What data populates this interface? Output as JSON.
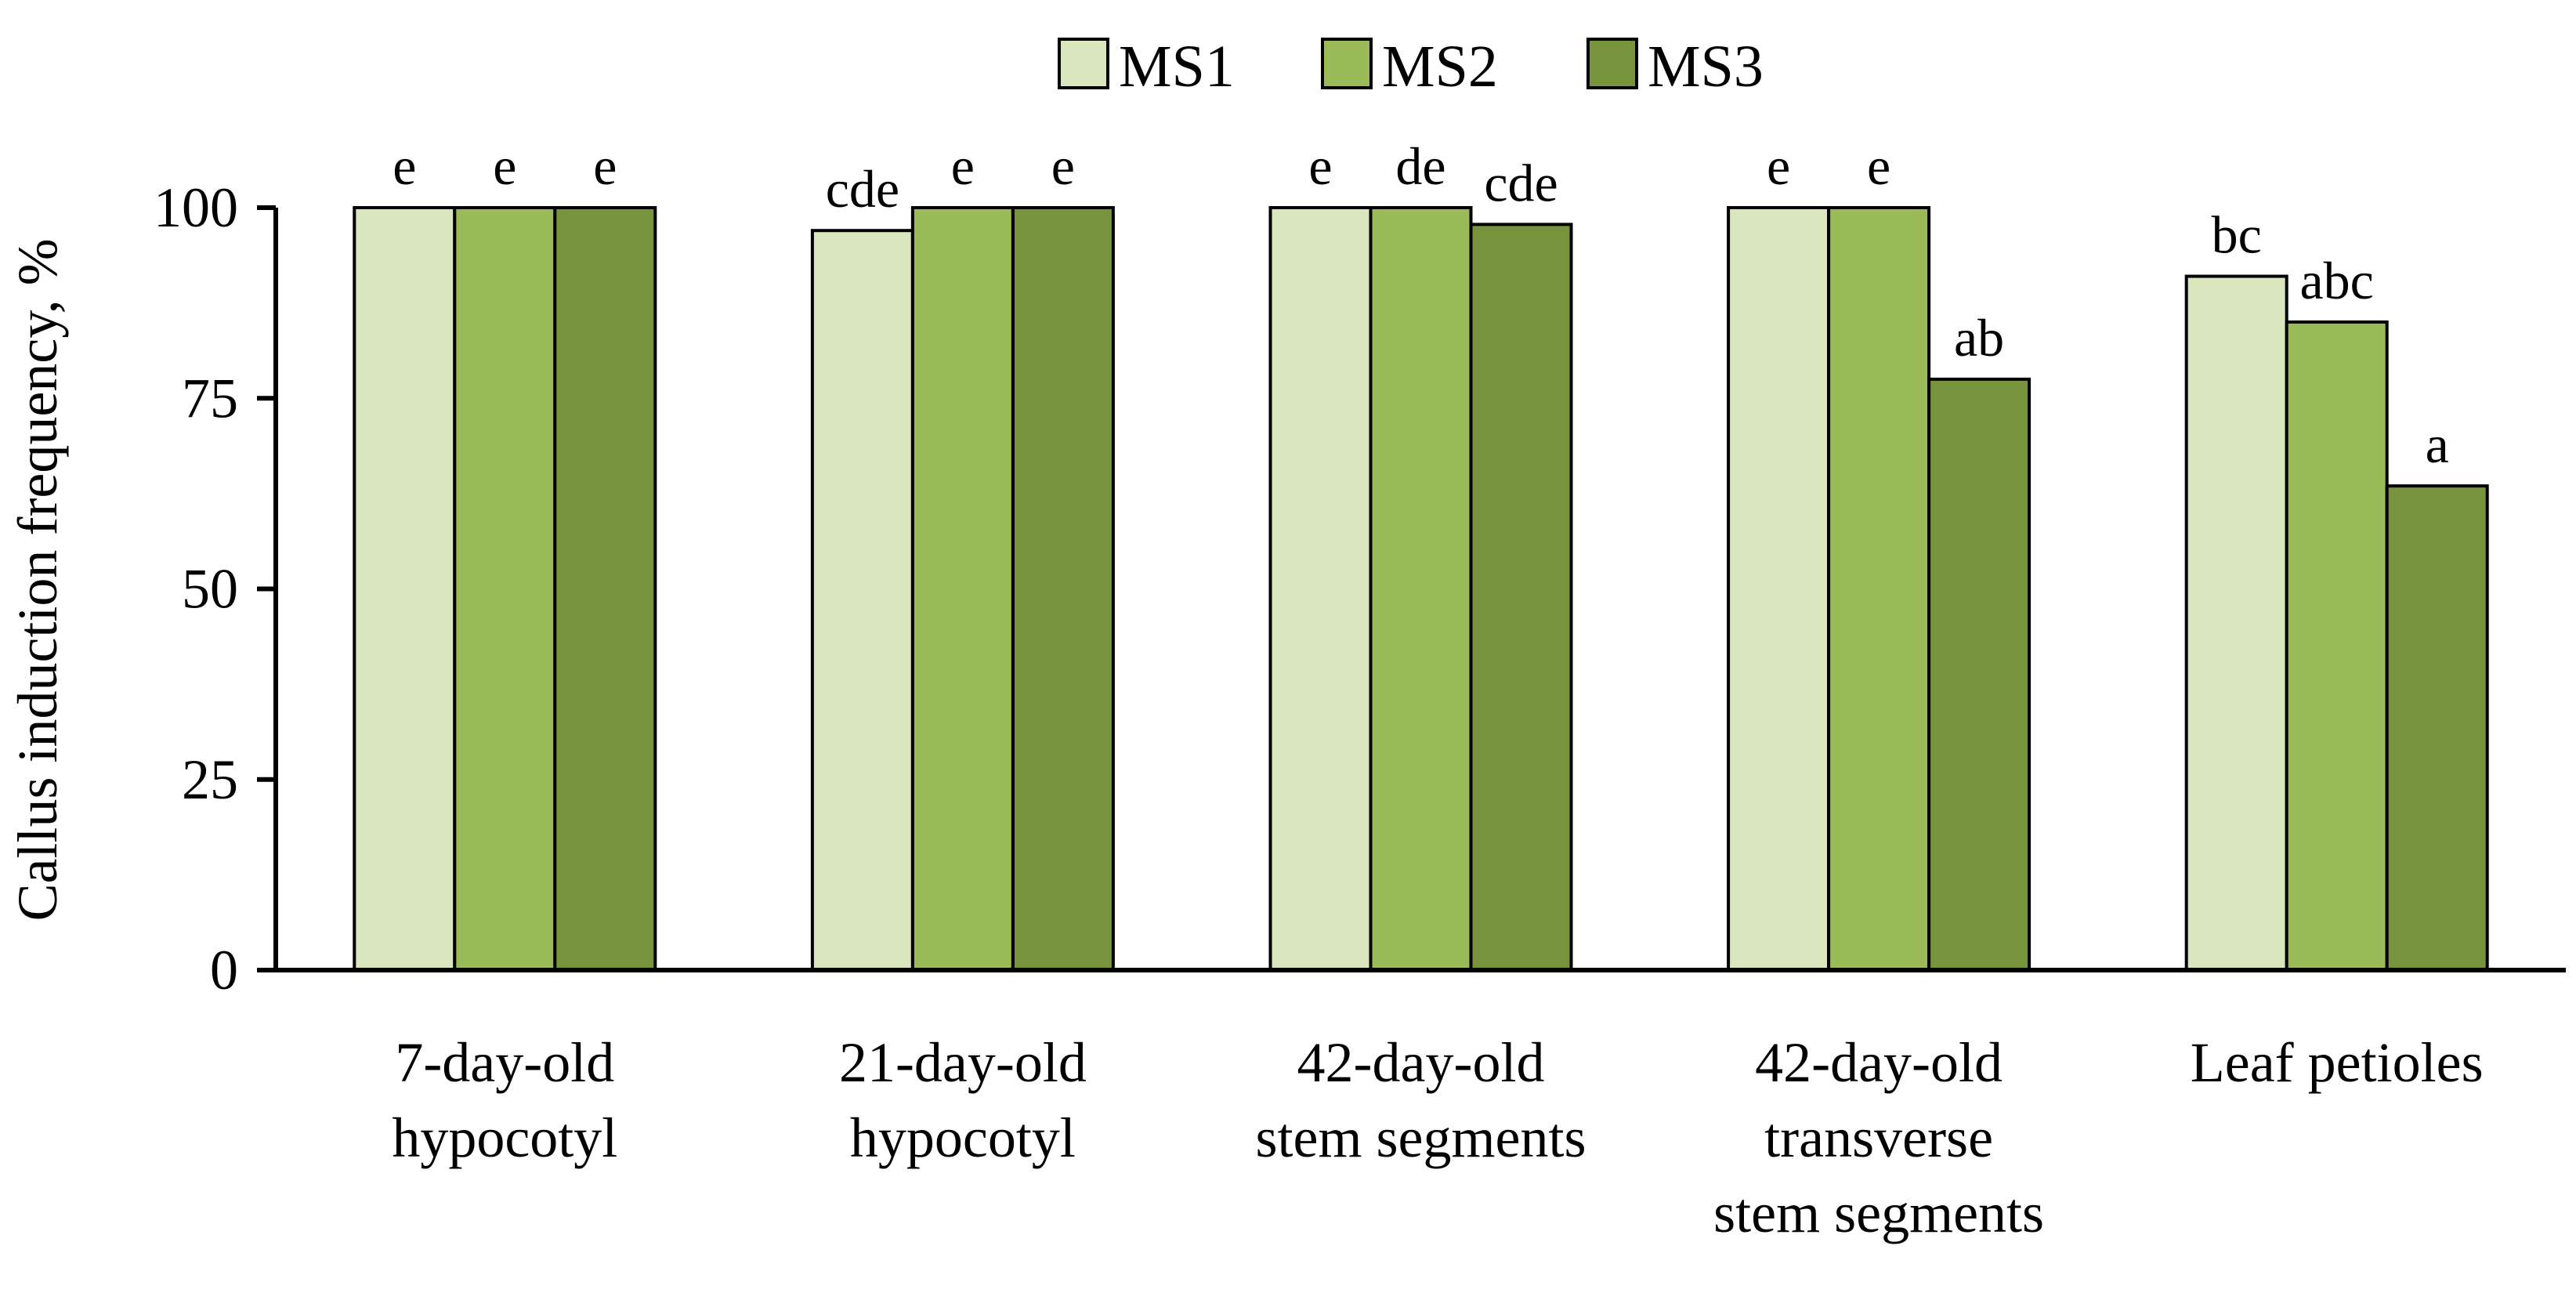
{
  "chart_data": {
    "type": "bar",
    "title": "",
    "xlabel": "",
    "ylabel": "Callus induction frequency, %",
    "ylim": [
      0,
      100
    ],
    "yticks": [
      0,
      25,
      50,
      75,
      100
    ],
    "grid": false,
    "legend_position": "top-center",
    "categories": [
      [
        "7-day-old",
        "hypocotyl"
      ],
      [
        "21-day-old",
        "hypocotyl"
      ],
      [
        "42-day-old",
        "stem segments"
      ],
      [
        "42-day-old",
        "transverse",
        "stem segments"
      ],
      [
        "Leaf petioles"
      ]
    ],
    "series": [
      {
        "name": "MS1",
        "color": "#D9E6BE",
        "values": [
          100,
          97,
          100,
          100,
          91
        ],
        "labels": [
          "e",
          "cde",
          "e",
          "e",
          "bc"
        ]
      },
      {
        "name": "MS2",
        "color": "#9BBB59",
        "values": [
          100,
          100,
          100,
          100,
          85
        ],
        "labels": [
          "e",
          "e",
          "de",
          "e",
          "abc"
        ]
      },
      {
        "name": "MS3",
        "color": "#77933C",
        "values": [
          100,
          100,
          97.8,
          77.5,
          63.5
        ],
        "labels": [
          "e",
          "e",
          "cde",
          "ab",
          "a"
        ]
      }
    ]
  }
}
